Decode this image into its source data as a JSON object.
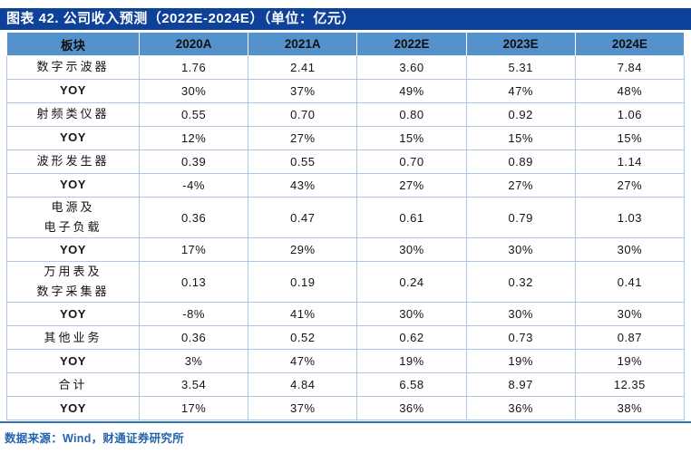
{
  "title": "图表 42. 公司收入预测（2022E-2024E）（单位：亿元）",
  "source": "数据来源：Wind，财通证券研究所",
  "colors": {
    "title_bar_bg": "#0d419a",
    "title_text": "#ffffff",
    "header_row_bg": "#5592cc",
    "segment_row_bg": "#dce8f6",
    "yoy_row_bg": "#ffffff",
    "grid_border": "#abc8e8",
    "source_text": "#2563ae",
    "bottom_rule": "#2e75b6"
  },
  "chart_data": {
    "type": "table",
    "title": "图表 42. 公司收入预测（2022E-2024E）（单位：亿元）",
    "columns": [
      "板块",
      "2020A",
      "2021A",
      "2022E",
      "2023E",
      "2024E"
    ],
    "rows": [
      {
        "label": "数字示波器",
        "kind": "segment",
        "values": [
          "1.76",
          "2.41",
          "3.60",
          "5.31",
          "7.84"
        ]
      },
      {
        "label": "YOY",
        "kind": "yoy",
        "values": [
          "30%",
          "37%",
          "49%",
          "47%",
          "48%"
        ]
      },
      {
        "label": "射频类仪器",
        "kind": "segment",
        "values": [
          "0.55",
          "0.70",
          "0.80",
          "0.92",
          "1.06"
        ]
      },
      {
        "label": "YOY",
        "kind": "yoy",
        "values": [
          "12%",
          "27%",
          "15%",
          "15%",
          "15%"
        ]
      },
      {
        "label": "波形发生器",
        "kind": "segment",
        "values": [
          "0.39",
          "0.55",
          "0.70",
          "0.89",
          "1.14"
        ]
      },
      {
        "label": "YOY",
        "kind": "yoy",
        "values": [
          "-4%",
          "43%",
          "27%",
          "27%",
          "27%"
        ]
      },
      {
        "label": "电源及\n电子负载",
        "kind": "segment",
        "values": [
          "0.36",
          "0.47",
          "0.61",
          "0.79",
          "1.03"
        ]
      },
      {
        "label": "YOY",
        "kind": "yoy",
        "values": [
          "17%",
          "29%",
          "30%",
          "30%",
          "30%"
        ]
      },
      {
        "label": "万用表及\n数字采集器",
        "kind": "segment",
        "values": [
          "0.13",
          "0.19",
          "0.24",
          "0.32",
          "0.41"
        ]
      },
      {
        "label": "YOY",
        "kind": "yoy",
        "values": [
          "-8%",
          "41%",
          "30%",
          "30%",
          "30%"
        ]
      },
      {
        "label": "其他业务",
        "kind": "segment",
        "values": [
          "0.36",
          "0.52",
          "0.62",
          "0.73",
          "0.87"
        ]
      },
      {
        "label": "YOY",
        "kind": "yoy",
        "values": [
          "3%",
          "47%",
          "19%",
          "19%",
          "19%"
        ]
      },
      {
        "label": "合计",
        "kind": "segment",
        "values": [
          "3.54",
          "4.84",
          "6.58",
          "8.97",
          "12.35"
        ]
      },
      {
        "label": "YOY",
        "kind": "yoy",
        "values": [
          "17%",
          "37%",
          "36%",
          "36%",
          "38%"
        ]
      }
    ],
    "source": "数据来源：Wind，财通证券研究所"
  }
}
